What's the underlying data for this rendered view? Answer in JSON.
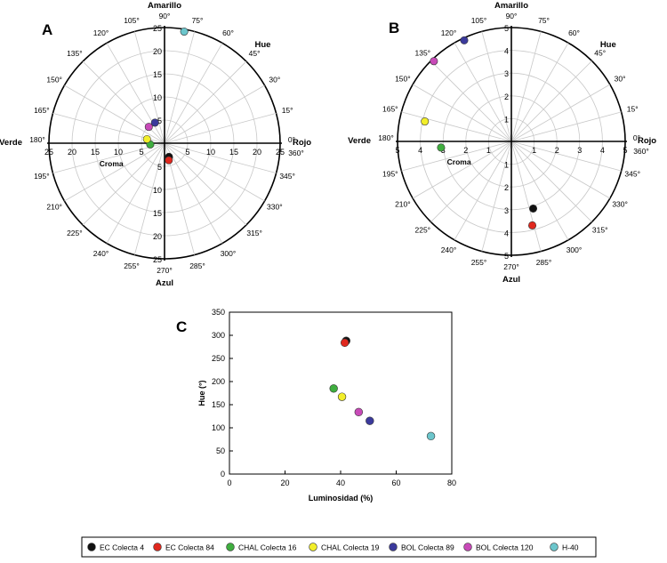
{
  "colors": {
    "ec4": "#111111",
    "ec84": "#e0281e",
    "chal16": "#3fae3f",
    "chal19": "#f2ee2a",
    "bol89": "#3b3a9c",
    "bol120": "#c84ab8",
    "h40": "#6cc6cc",
    "axis": "#000000",
    "grid": "#c8c8c8"
  },
  "polar_labels": {
    "top": "Amarillo",
    "bottom": "Azul",
    "left": "Verde",
    "right": "Rojo",
    "hue": "Hue",
    "croma": "Croma"
  },
  "chart_data": [
    {
      "id": "A",
      "panel_label": "A",
      "type": "scatter",
      "coordinate_system": "polar (hue angle, chroma radius)",
      "rmax": 25,
      "axis_ticks": [
        "25",
        "20",
        "15",
        "10",
        "5",
        "5",
        "10",
        "15",
        "20",
        "25"
      ],
      "axis_ticks_values": [
        25,
        20,
        15,
        10,
        5
      ],
      "angle_labels": [
        "0°",
        "15°",
        "30°",
        "45°",
        "60°",
        "75°",
        "90°",
        "105°",
        "120°",
        "135°",
        "150°",
        "165°",
        "180°",
        "195°",
        "210°",
        "225°",
        "240°",
        "255°",
        "270°",
        "285°",
        "300°",
        "315°",
        "330°",
        "345°",
        "360°"
      ],
      "points": [
        {
          "series": "EC Colecta 4",
          "hue": 288,
          "chroma": 3.1
        },
        {
          "series": "EC Colecta 84",
          "hue": 284,
          "chroma": 3.8
        },
        {
          "series": "CHAL Colecta 16",
          "hue": 185,
          "chroma": 3.1
        },
        {
          "series": "CHAL Colecta 19",
          "hue": 167,
          "chroma": 3.9
        },
        {
          "series": "BOL Colecta 89",
          "hue": 115,
          "chroma": 4.9
        },
        {
          "series": "BOL Colecta 120",
          "hue": 134,
          "chroma": 4.9
        },
        {
          "series": "H-40",
          "hue": 80,
          "chroma": 24.5
        }
      ]
    },
    {
      "id": "B",
      "panel_label": "B",
      "type": "scatter",
      "coordinate_system": "polar (hue angle, chroma radius)",
      "rmax": 5,
      "axis_ticks_values": [
        5,
        4,
        3,
        2,
        1
      ],
      "angle_labels": [
        "0°",
        "15°",
        "30°",
        "45°",
        "60°",
        "75°",
        "90°",
        "105°",
        "120°",
        "135°",
        "150°",
        "165°",
        "180°",
        "195°",
        "210°",
        "225°",
        "240°",
        "255°",
        "270°",
        "285°",
        "300°",
        "315°",
        "330°",
        "345°",
        "360°"
      ],
      "points": [
        {
          "series": "EC Colecta 4",
          "hue": 288,
          "chroma": 3.1
        },
        {
          "series": "EC Colecta 84",
          "hue": 284,
          "chroma": 3.8
        },
        {
          "series": "CHAL Colecta 16",
          "hue": 185,
          "chroma": 3.1
        },
        {
          "series": "CHAL Colecta 19",
          "hue": 167,
          "chroma": 3.9
        },
        {
          "series": "BOL Colecta 89",
          "hue": 115,
          "chroma": 4.9
        },
        {
          "series": "BOL Colecta 120",
          "hue": 134,
          "chroma": 4.9
        }
      ]
    },
    {
      "id": "C",
      "panel_label": "C",
      "type": "scatter",
      "xlabel": "Luminosidad (%)",
      "ylabel": "Hue (°)",
      "xlim": [
        0,
        80
      ],
      "ylim": [
        0,
        350
      ],
      "xticks": [
        0,
        20,
        40,
        60,
        80
      ],
      "yticks": [
        0,
        50,
        100,
        150,
        200,
        250,
        300,
        350
      ],
      "points": [
        {
          "series": "EC Colecta 4",
          "x": 42,
          "y": 288
        },
        {
          "series": "EC Colecta 84",
          "x": 41.5,
          "y": 284
        },
        {
          "series": "CHAL Colecta 16",
          "x": 37.5,
          "y": 185
        },
        {
          "series": "CHAL Colecta 19",
          "x": 40.5,
          "y": 167
        },
        {
          "series": "BOL Colecta 89",
          "x": 50.5,
          "y": 115
        },
        {
          "series": "BOL Colecta 120",
          "x": 46.5,
          "y": 134
        },
        {
          "series": "H-40",
          "x": 72.5,
          "y": 82
        }
      ]
    }
  ],
  "legend": [
    {
      "label": "EC Colecta 4",
      "color": "#111111"
    },
    {
      "label": "EC Colecta 84",
      "color": "#e0281e"
    },
    {
      "label": "CHAL Colecta 16",
      "color": "#3fae3f"
    },
    {
      "label": "CHAL Colecta 19",
      "color": "#f2ee2a"
    },
    {
      "label": "BOL Colecta 89",
      "color": "#3b3a9c"
    },
    {
      "label": "BOL Colecta 120",
      "color": "#c84ab8"
    },
    {
      "label": "H-40",
      "color": "#6cc6cc"
    }
  ]
}
